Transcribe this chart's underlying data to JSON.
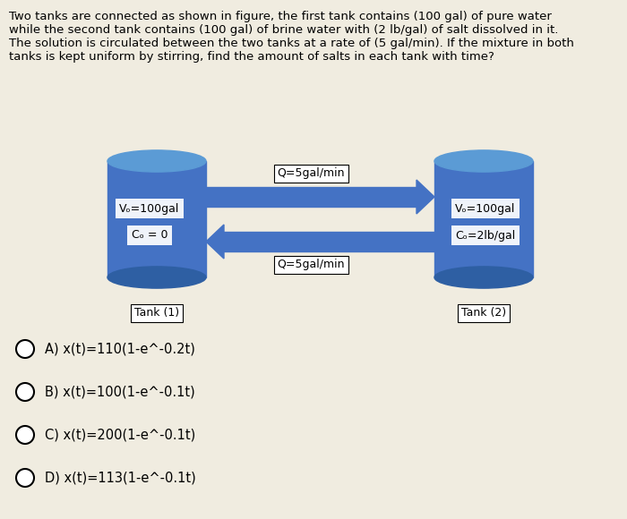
{
  "background_color": "#f0ece0",
  "title_text": "Two tanks are connected as shown in figure, the first tank contains (100 gal) of pure water\nwhile the second tank contains (100 gal) of brine water with (2 lb/gal) of salt dissolved in it.\nThe solution is circulated between the two tanks at a rate of (5 gal/min). If the mixture in both\ntanks is kept uniform by stirring, find the amount of salts in each tank with time?",
  "tank1_label": "Tank (1)",
  "tank2_label": "Tank (2)",
  "tank1_text1": "Vₒ=100gal",
  "tank1_text2": "Cₒ = 0",
  "tank2_text1": "Vₒ=100gal",
  "tank2_text2": "Cₒ=2lb/gal",
  "arrow_top_label": "Q=5gal/min",
  "arrow_bottom_label": "Q=5gal/min",
  "tank_body_color": "#4472c4",
  "tank_top_color": "#5b9bd5",
  "tank_shadow_color": "#2e5fa3",
  "choices": [
    "A) x(t)=110(1-e^-0.2t)",
    "B) x(t)=100(1-e^-0.1t)",
    "C) x(t)=200(1-e^-0.1t)",
    "D) x(t)=113(1-e^-0.1t)"
  ],
  "arrow_color": "#4472c4",
  "text_color": "#000000",
  "font_size_title": 9.5,
  "font_size_labels": 9,
  "font_size_tank_text": 9,
  "font_size_choices": 10.5
}
